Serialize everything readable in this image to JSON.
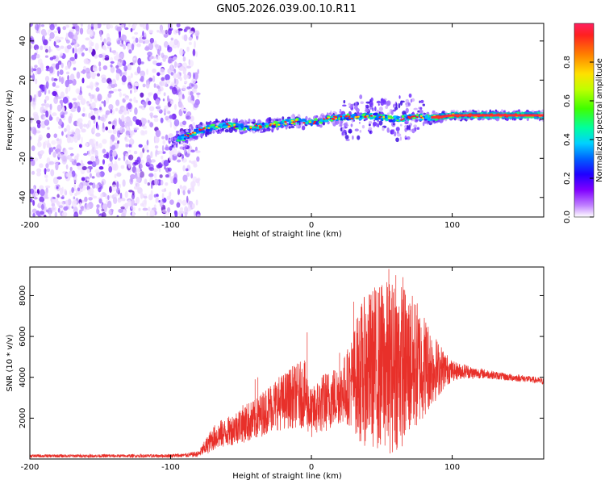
{
  "title": "GN05.2026.039.00.10.R11",
  "chart_data": [
    {
      "type": "heatmap",
      "title": "GN05.2026.039.00.10.R11",
      "xlabel": "Height of straight line (km)",
      "ylabel": "Frequency (Hz)",
      "xlim": [
        -200,
        165
      ],
      "ylim": [
        -50,
        49
      ],
      "x_ticks": [
        -200,
        -100,
        0,
        100
      ],
      "y_ticks": [
        -40,
        -20,
        0,
        20,
        40
      ],
      "colorbar": {
        "label": "Normalized spectral amplitude",
        "range": [
          0.0,
          1.0
        ],
        "ticks": [
          "0.0",
          "0.2",
          "0.4",
          "0.6",
          "0.8"
        ],
        "colors": [
          "#ffffff",
          "#8000ff",
          "#0000ff",
          "#00c0ff",
          "#00ff80",
          "#80ff00",
          "#ffff00",
          "#ff8000",
          "#ff0000"
        ]
      },
      "features": {
        "noise_region_x": [
          -200,
          -80
        ],
        "signal_track": {
          "x": [
            -100,
            -90,
            -80,
            -70,
            -60,
            -50,
            -40,
            -30,
            -20,
            -10,
            0,
            10,
            20,
            30,
            40,
            50,
            60,
            70,
            80,
            90,
            100,
            110,
            120,
            130,
            140,
            150,
            160
          ],
          "y": [
            -12,
            -9,
            -6,
            -4,
            -3,
            -4,
            -4,
            -3,
            -2,
            -1,
            -2,
            0,
            1,
            1,
            2,
            1,
            0,
            1,
            1,
            1,
            2,
            2,
            2,
            2,
            2,
            2,
            2
          ]
        }
      }
    },
    {
      "type": "line",
      "xlabel": "Height of straight line (km)",
      "ylabel": "SNR (10 * v/v)",
      "xlim": [
        -200,
        165
      ],
      "ylim": [
        0,
        9400
      ],
      "x_ticks": [
        -200,
        -100,
        0,
        100
      ],
      "y_ticks": [
        2000,
        4000,
        6000,
        8000
      ],
      "series": [
        {
          "name": "SNR",
          "color": "#e8302a",
          "x": [
            -200,
            -190,
            -180,
            -170,
            -160,
            -150,
            -140,
            -130,
            -120,
            -110,
            -100,
            -90,
            -80,
            -75,
            -70,
            -65,
            -60,
            -55,
            -50,
            -45,
            -40,
            -35,
            -30,
            -25,
            -20,
            -15,
            -10,
            -5,
            0,
            5,
            10,
            15,
            20,
            25,
            30,
            35,
            40,
            45,
            50,
            55,
            60,
            65,
            70,
            75,
            80,
            85,
            90,
            95,
            100,
            105,
            110,
            115,
            120,
            130,
            140,
            150,
            160,
            165
          ],
          "mean": [
            150,
            150,
            150,
            150,
            150,
            150,
            150,
            150,
            150,
            150,
            160,
            180,
            250,
            600,
            1000,
            1200,
            1300,
            1500,
            1700,
            1800,
            1900,
            2200,
            2500,
            2700,
            2800,
            3000,
            3100,
            3200,
            2200,
            2600,
            2800,
            3000,
            3200,
            3500,
            3900,
            4200,
            4400,
            4500,
            4500,
            4500,
            4600,
            4600,
            4600,
            4600,
            4600,
            4500,
            4400,
            4400,
            4300,
            4300,
            4300,
            4200,
            4200,
            4100,
            4000,
            3950,
            3850,
            3800
          ],
          "spread": [
            80,
            80,
            80,
            80,
            80,
            80,
            80,
            80,
            80,
            80,
            90,
            100,
            150,
            400,
            600,
            700,
            700,
            800,
            900,
            1000,
            1000,
            1100,
            1200,
            1300,
            1400,
            1500,
            1600,
            1700,
            1200,
            1400,
            1500,
            1500,
            1500,
            1800,
            2500,
            3500,
            3800,
            4000,
            4200,
            4300,
            4200,
            4000,
            3600,
            3200,
            2600,
            2000,
            1400,
            900,
            500,
            400,
            350,
            300,
            250,
            200,
            180,
            170,
            160,
            150
          ],
          "peaks": [
            {
              "x": -3,
              "y": 6200
            },
            {
              "x": -40,
              "y": 3900
            },
            {
              "x": -38,
              "y": 4000
            },
            {
              "x": 30,
              "y": 7700
            },
            {
              "x": 45,
              "y": 8400
            },
            {
              "x": 55,
              "y": 9300
            },
            {
              "x": 60,
              "y": 9000
            },
            {
              "x": 65,
              "y": 8900
            },
            {
              "x": 70,
              "y": 7300
            },
            {
              "x": 20,
              "y": 5200
            },
            {
              "x": 35,
              "y": 6900
            }
          ]
        }
      ]
    }
  ]
}
